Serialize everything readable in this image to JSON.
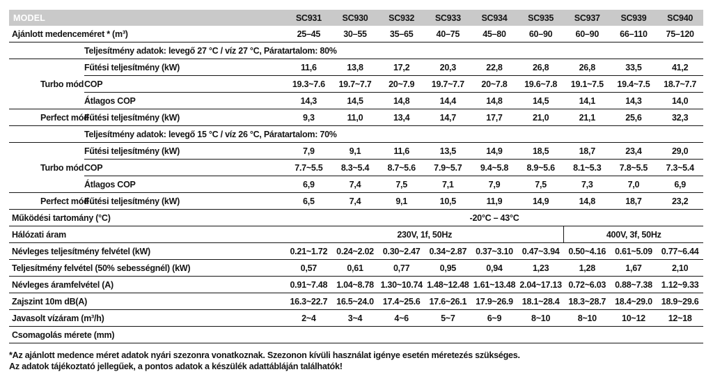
{
  "table": {
    "model_header": {
      "label": "MODEL",
      "models": [
        "SC931",
        "SC930",
        "SC932",
        "SC933",
        "SC934",
        "SC935",
        "SC937",
        "SC939",
        "SC940"
      ]
    },
    "pool_size": {
      "label": "Ajánlott medenceméret * (m³)",
      "values": [
        "25–45",
        "30–55",
        "35–65",
        "40–75",
        "45–80",
        "60–90",
        "60–90",
        "66–110",
        "75–120"
      ]
    },
    "section_27": {
      "title": "Teljesítmény adatok: levegő 27 °C / víz 27 °C, Páratartalom: 80%",
      "turbo": {
        "label": "Turbo mód",
        "heating": {
          "label": "Fűtési teljesítmény (kW)",
          "values": [
            "11,6",
            "13,8",
            "17,2",
            "20,3",
            "22,8",
            "26,8",
            "26,8",
            "33,5",
            "41,2"
          ]
        },
        "cop": {
          "label": "COP",
          "values": [
            "19.3~7.6",
            "19.7~7.7",
            "20~7.9",
            "19.7~7.7",
            "20~7.8",
            "19.6~7.8",
            "19.1~7.5",
            "19.4~7.5",
            "18.7~7.7"
          ]
        },
        "avg_cop": {
          "label": "Átlagos COP",
          "values": [
            "14,3",
            "14,5",
            "14,8",
            "14,4",
            "14,8",
            "14,5",
            "14,1",
            "14,3",
            "14,0"
          ]
        }
      },
      "perfect": {
        "label": "Perfect mód",
        "heating": {
          "label": "Fűtési teljesítmény (kW)",
          "values": [
            "9,3",
            "11,0",
            "13,4",
            "14,7",
            "17,7",
            "21,0",
            "21,1",
            "25,6",
            "32,3"
          ]
        }
      }
    },
    "section_15": {
      "title": "Teljesítmény adatok: levegő 15 °C / víz 26 °C, Páratartalom: 70%",
      "turbo": {
        "label": "Turbo mód",
        "heating": {
          "label": "Fűtési teljesítmény (kW)",
          "values": [
            "7,9",
            "9,1",
            "11,6",
            "13,5",
            "14,9",
            "18,5",
            "18,7",
            "23,4",
            "29,0"
          ]
        },
        "cop": {
          "label": "COP",
          "values": [
            "7.7~5.5",
            "8.3~5.4",
            "8.7~5.6",
            "7.9~5.7",
            "9.4~5.8",
            "8.9~5.6",
            "8.1~5.3",
            "7.8~5.5",
            "7.3~5.4"
          ]
        },
        "avg_cop": {
          "label": "Átlagos COP",
          "values": [
            "6,9",
            "7,4",
            "7,5",
            "7,1",
            "7,9",
            "7,5",
            "7,3",
            "7,0",
            "6,9"
          ]
        }
      },
      "perfect": {
        "label": "Perfect mód",
        "heating": {
          "label": "Fűtési teljesítmény (kW)",
          "values": [
            "6,5",
            "7,4",
            "9,1",
            "10,5",
            "11,9",
            "14,9",
            "14,8",
            "18,7",
            "23,2"
          ]
        }
      }
    },
    "operating_range": {
      "label": "Működési tartomány (°C)",
      "value": "-20°C – 43°C"
    },
    "power_supply": {
      "label": "Hálózati áram",
      "supply_230": "230V, 1f, 50Hz",
      "supply_400": "400V, 3f, 50Hz"
    },
    "nominal_power_input": {
      "label": "Névleges teljesítmény felvétel (kW)",
      "values": [
        "0.21~1.72",
        "0.24~2.02",
        "0.30~2.47",
        "0.34~2.87",
        "0.37~3.10",
        "0.47~3.94",
        "0.50~4.16",
        "0.61~5.09",
        "0.77~6.44"
      ]
    },
    "power_input_50": {
      "label": "Teljesítmény felvétel (50% sebességnél) (kW)",
      "values": [
        "0,57",
        "0,61",
        "0,77",
        "0,95",
        "0,94",
        "1,23",
        "1,28",
        "1,67",
        "2,10"
      ]
    },
    "nominal_current": {
      "label": "Névleges áramfelvétel (A)",
      "values": [
        "0.91~7.48",
        "1.04~8.78",
        "1.30~10.74",
        "1.48~12.48",
        "1.61~13.48",
        "2.04~17.13",
        "0.72~6.03",
        "0.88~7.38",
        "1.12~9.33"
      ]
    },
    "noise": {
      "label": "Zajszint 10m dB(A)",
      "values": [
        "16.3~22.7",
        "16.5~24.0",
        "17.4~25.6",
        "17.6~26.1",
        "17.9~26.9",
        "18.1~28.4",
        "18.3~28.7",
        "18.4~29.0",
        "18.9~29.6"
      ]
    },
    "water_flow": {
      "label": "Javasolt vízáram (m³/h)",
      "values": [
        "2~4",
        "3~4",
        "4~6",
        "5~7",
        "6~9",
        "8~10",
        "8~10",
        "10~12",
        "12~18"
      ]
    },
    "packaging": {
      "label": "Csomagolás mérete (mm)"
    }
  },
  "footnotes": {
    "line1": "*Az ajánlott medence méret adatok nyári szezonra vonatkoznak. Szezonon kívüli használat igénye esetén méretezés szükséges.",
    "line2": "Az adatok tájékoztató jellegűek, a pontos adatok a készülék adattábláján találhatók!"
  }
}
